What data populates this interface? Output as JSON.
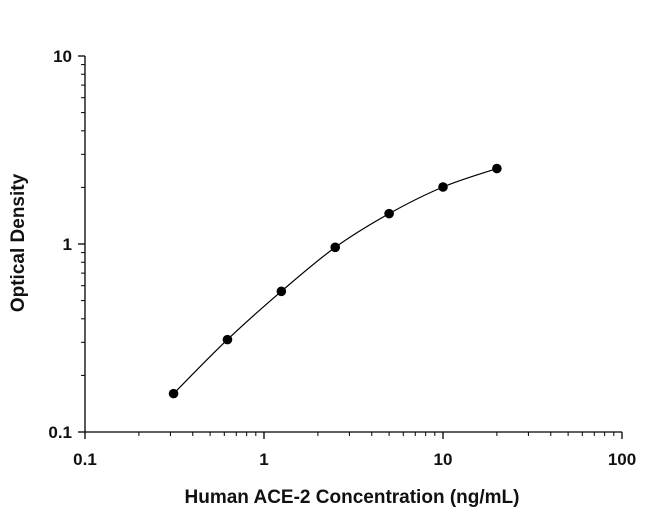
{
  "chart_data": {
    "type": "scatter",
    "title": "",
    "xlabel": "Human ACE-2 Concentration (ng/mL)",
    "ylabel": "Optical Density",
    "x_scale": "log",
    "y_scale": "log",
    "xlim": [
      0.1,
      100
    ],
    "ylim": [
      0.1,
      10
    ],
    "x_ticks": [
      "0.1",
      "1",
      "10",
      "100"
    ],
    "y_ticks": [
      "0.1",
      "1",
      "10"
    ],
    "grid": false,
    "legend": "none",
    "marker_color": "#000000",
    "line_color": "#000000",
    "series": [
      {
        "x": [
          0.3125,
          0.625,
          1.25,
          2.5,
          5,
          10,
          20
        ],
        "y": [
          0.16,
          0.31,
          0.56,
          0.96,
          1.45,
          2.01,
          2.52
        ],
        "fit": "curve"
      }
    ]
  }
}
